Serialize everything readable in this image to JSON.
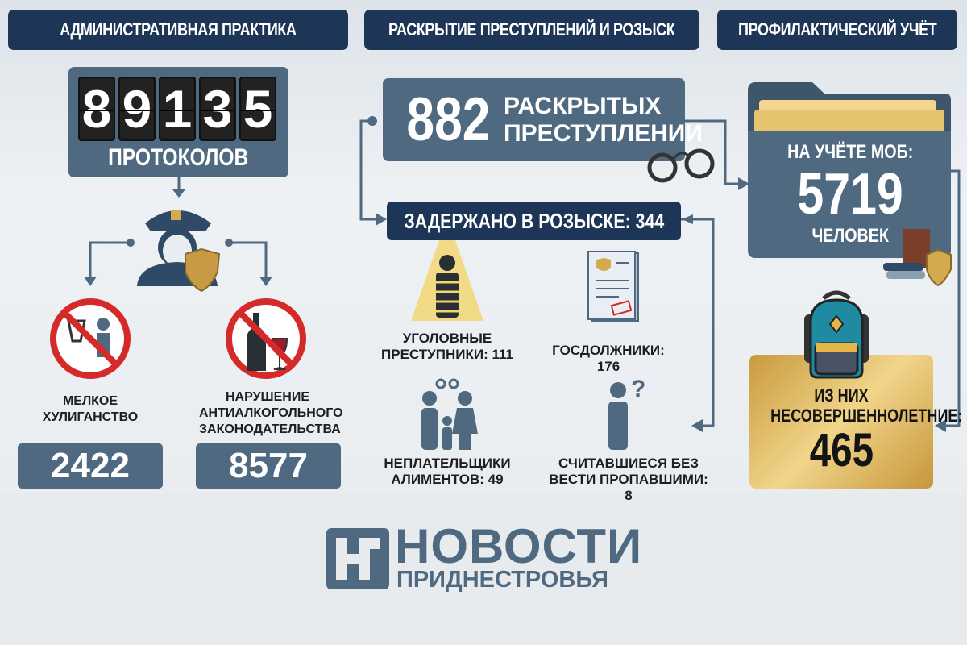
{
  "sections": {
    "admin": "АДМИНИСТРАТИВНАЯ ПРАКТИКА",
    "crimes": "РАСКРЫТИЕ ПРЕСТУПЛЕНИЙ И РОЗЫСК",
    "prevention": "ПРОФИЛАКТИЧЕСКИЙ УЧЁТ"
  },
  "admin": {
    "digits": [
      "8",
      "9",
      "1",
      "3",
      "5"
    ],
    "protocols_label": "ПРОТОКОЛОВ",
    "hooliganism_label": "МЕЛКОЕ ХУЛИГАНСТВО",
    "hooliganism_value": "2422",
    "alcohol_label": "НАРУШЕНИЕ АНТИАЛКОГОЛЬНОГО ЗАКОНОДАТЕЛЬСТВА",
    "alcohol_value": "8577"
  },
  "crimes": {
    "solved_value": "882",
    "solved_label_1": "РАСКРЫТЫХ",
    "solved_label_2": "ПРЕСТУПЛЕНИЙ",
    "detained": "ЗАДЕРЖАНО В РОЗЫСКЕ: 344",
    "criminals_1": "УГОЛОВНЫЕ",
    "criminals_2": "ПРЕСТУПНИКИ: 111",
    "debtors": "ГОСДОЛЖНИКИ: 176",
    "alimony_1": "НЕПЛАТЕЛЬЩИКИ",
    "alimony_2": "АЛИМЕНТОВ: 49",
    "missing_1": "СЧИТАВШИЕСЯ БЕЗ",
    "missing_2": "ВЕСТИ ПРОПАВШИМИ: 8"
  },
  "prevention": {
    "registered_label": "НА УЧЁТЕ МОБ:",
    "registered_value": "5719",
    "registered_unit": "ЧЕЛОВЕК",
    "minors_label_1": "ИЗ НИХ",
    "minors_label_2": "НЕСОВЕРШЕННОЛЕТНИЕ:",
    "minors_value": "465"
  },
  "logo": {
    "line1": "НОВОСТИ",
    "line2": "ПРИДНЕСТРОВЬЯ"
  },
  "colors": {
    "navy": "#1d3556",
    "slate": "#4f6a80",
    "gold": "#d4aa4e"
  }
}
